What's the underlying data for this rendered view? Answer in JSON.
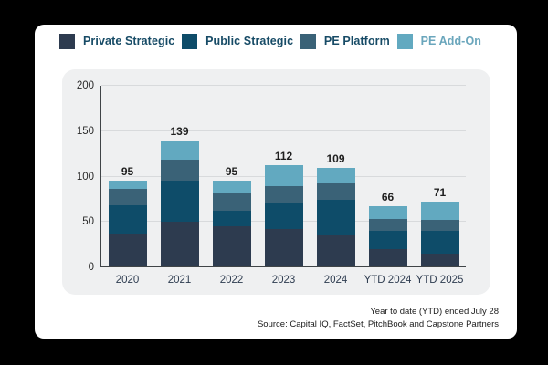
{
  "colors": {
    "page_bg": "#000000",
    "card_bg": "#ffffff",
    "panel_bg": "#eff0f1",
    "gridline": "#d8dadc",
    "axis_line": "#3f4447",
    "legend_text": "#174b66",
    "addon_legend_text": "#6aa6bc",
    "total_label": "#1f1f1f",
    "xlabel_text": "#2d3b4f"
  },
  "legend": {
    "items": [
      {
        "label": "Private Strategic",
        "color": "#2d3b4f",
        "text_color": "#174b66"
      },
      {
        "label": "Public Strategic",
        "color": "#0e4c69",
        "text_color": "#174b66"
      },
      {
        "label": "PE Platform",
        "color": "#3a6277",
        "text_color": "#174b66"
      },
      {
        "label": "PE Add-On",
        "color": "#62a9c0",
        "text_color": "#6aa6bc"
      }
    ]
  },
  "chart_data": {
    "type": "bar",
    "stacked": true,
    "categories": [
      "2020",
      "2021",
      "2022",
      "2023",
      "2024",
      "YTD 2024",
      "YTD 2025"
    ],
    "series": [
      {
        "name": "Private Strategic",
        "color": "#2d3b4f",
        "values": [
          36,
          49,
          44,
          41,
          35,
          19,
          14
        ]
      },
      {
        "name": "Public Strategic",
        "color": "#0e4c69",
        "values": [
          31,
          45,
          17,
          29,
          38,
          20,
          25
        ]
      },
      {
        "name": "PE Platform",
        "color": "#3a6277",
        "values": [
          18,
          24,
          19,
          18,
          18,
          13,
          12
        ]
      },
      {
        "name": "PE Add-On",
        "color": "#62a9c0",
        "values": [
          10,
          21,
          15,
          24,
          18,
          14,
          20
        ]
      }
    ],
    "totals": [
      95,
      139,
      95,
      112,
      109,
      66,
      71
    ],
    "title": "",
    "xlabel": "",
    "ylabel": "",
    "yticks": [
      0,
      50,
      100,
      150,
      200
    ],
    "ylim": [
      0,
      200
    ],
    "grid": true,
    "legend_position": "top"
  },
  "footer": {
    "line1": "Year to date (YTD) ended July 28",
    "line2": "Source: Capital IQ, FactSet, PitchBook and Capstone Partners"
  }
}
